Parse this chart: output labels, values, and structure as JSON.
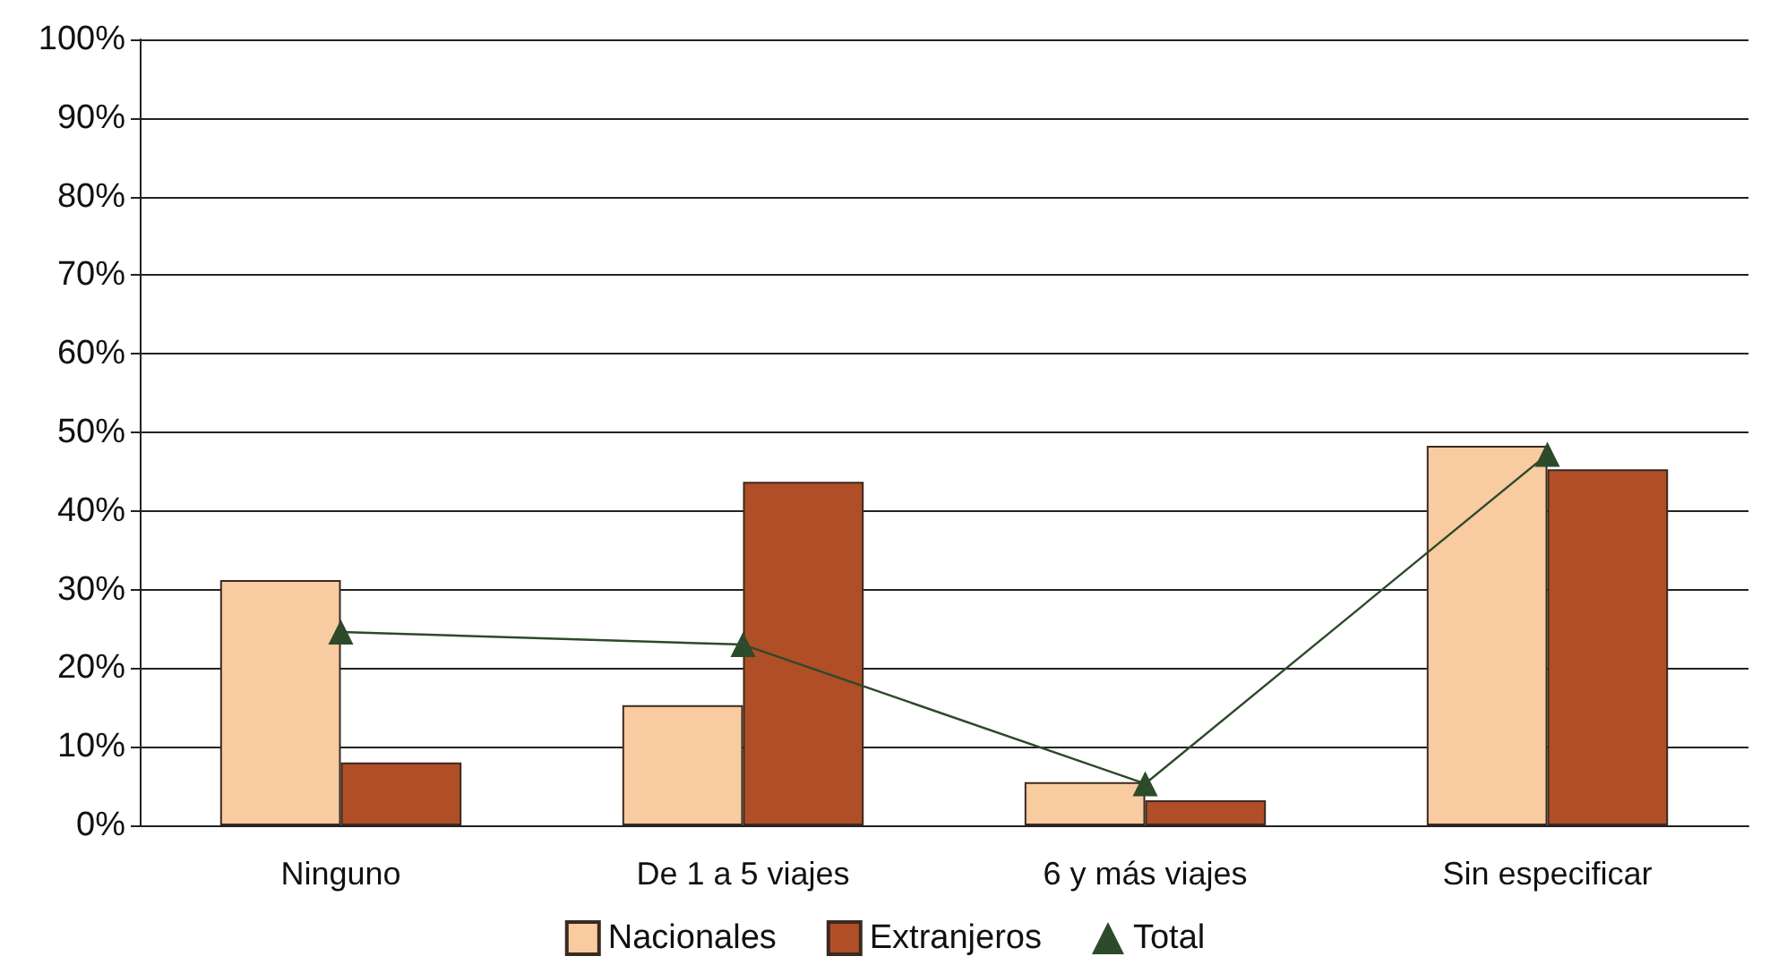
{
  "chart_data": {
    "type": "bar",
    "categories": [
      "Ninguno",
      "De 1 a 5 viajes",
      "6 y más viajes",
      "Sin especificar"
    ],
    "series": [
      {
        "name": "Nacionales",
        "color": "#f8cba0",
        "values": [
          31.2,
          15.3,
          5.5,
          48.3
        ]
      },
      {
        "name": "Extranjeros",
        "color": "#b04e27",
        "values": [
          8.0,
          43.7,
          3.2,
          45.3
        ]
      },
      {
        "name": "Total",
        "type": "line",
        "color": "#2d4a2a",
        "marker": "triangle",
        "values": [
          24.6,
          23.0,
          5.3,
          47.2
        ]
      }
    ],
    "ylim": [
      0,
      100
    ],
    "yticks": [
      {
        "value": 0,
        "label": "0%"
      },
      {
        "value": 10,
        "label": "10%"
      },
      {
        "value": 20,
        "label": "20%"
      },
      {
        "value": 30,
        "label": "30%"
      },
      {
        "value": 40,
        "label": "40%"
      },
      {
        "value": 50,
        "label": "50%"
      },
      {
        "value": 60,
        "label": "60%"
      },
      {
        "value": 70,
        "label": "70%"
      },
      {
        "value": 80,
        "label": "80%"
      },
      {
        "value": 90,
        "label": "90%"
      },
      {
        "value": 100,
        "label": "100%"
      }
    ],
    "grid": "y",
    "legend": "bottom"
  }
}
